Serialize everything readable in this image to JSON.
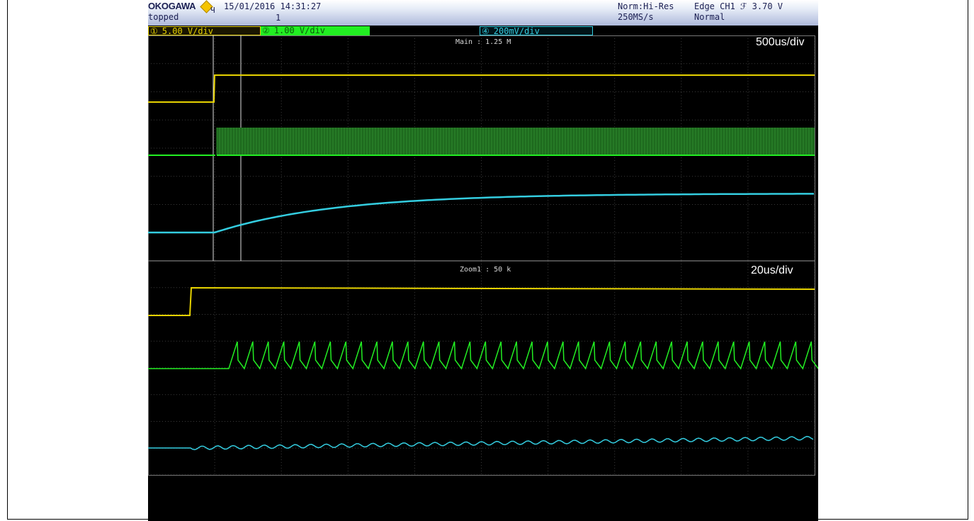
{
  "header": {
    "brand": "OKOGAWA",
    "datetime": "15/01/2016 14:31:27",
    "status": "topped",
    "marker": "1",
    "acq_mode": "Norm:Hi-Res",
    "sample_rate": "250MS/s",
    "trigger": "Edge CH1 ℱ 3.70 V",
    "trigger_mode": "Normal"
  },
  "channels": {
    "ch1": {
      "label": "5.00 V∕div",
      "color": "#e6d200",
      "icon": "circled-1-icon"
    },
    "ch2": {
      "label": "1.00 V∕div",
      "color": "#22ee22",
      "icon": "circled-2-icon"
    },
    "ch4": {
      "label": "200mV∕div",
      "color": "#34cde0",
      "icon": "circled-4-icon"
    }
  },
  "main_window": {
    "title": "Main : 1.25 M",
    "timebase": "500us/div"
  },
  "zoom_window": {
    "title": "Zoom1 : 50 k",
    "timebase": "20us/div"
  },
  "colors": {
    "grid": "#3a3a3a",
    "background": "#000000",
    "cursor": "#e0e0e0"
  }
}
